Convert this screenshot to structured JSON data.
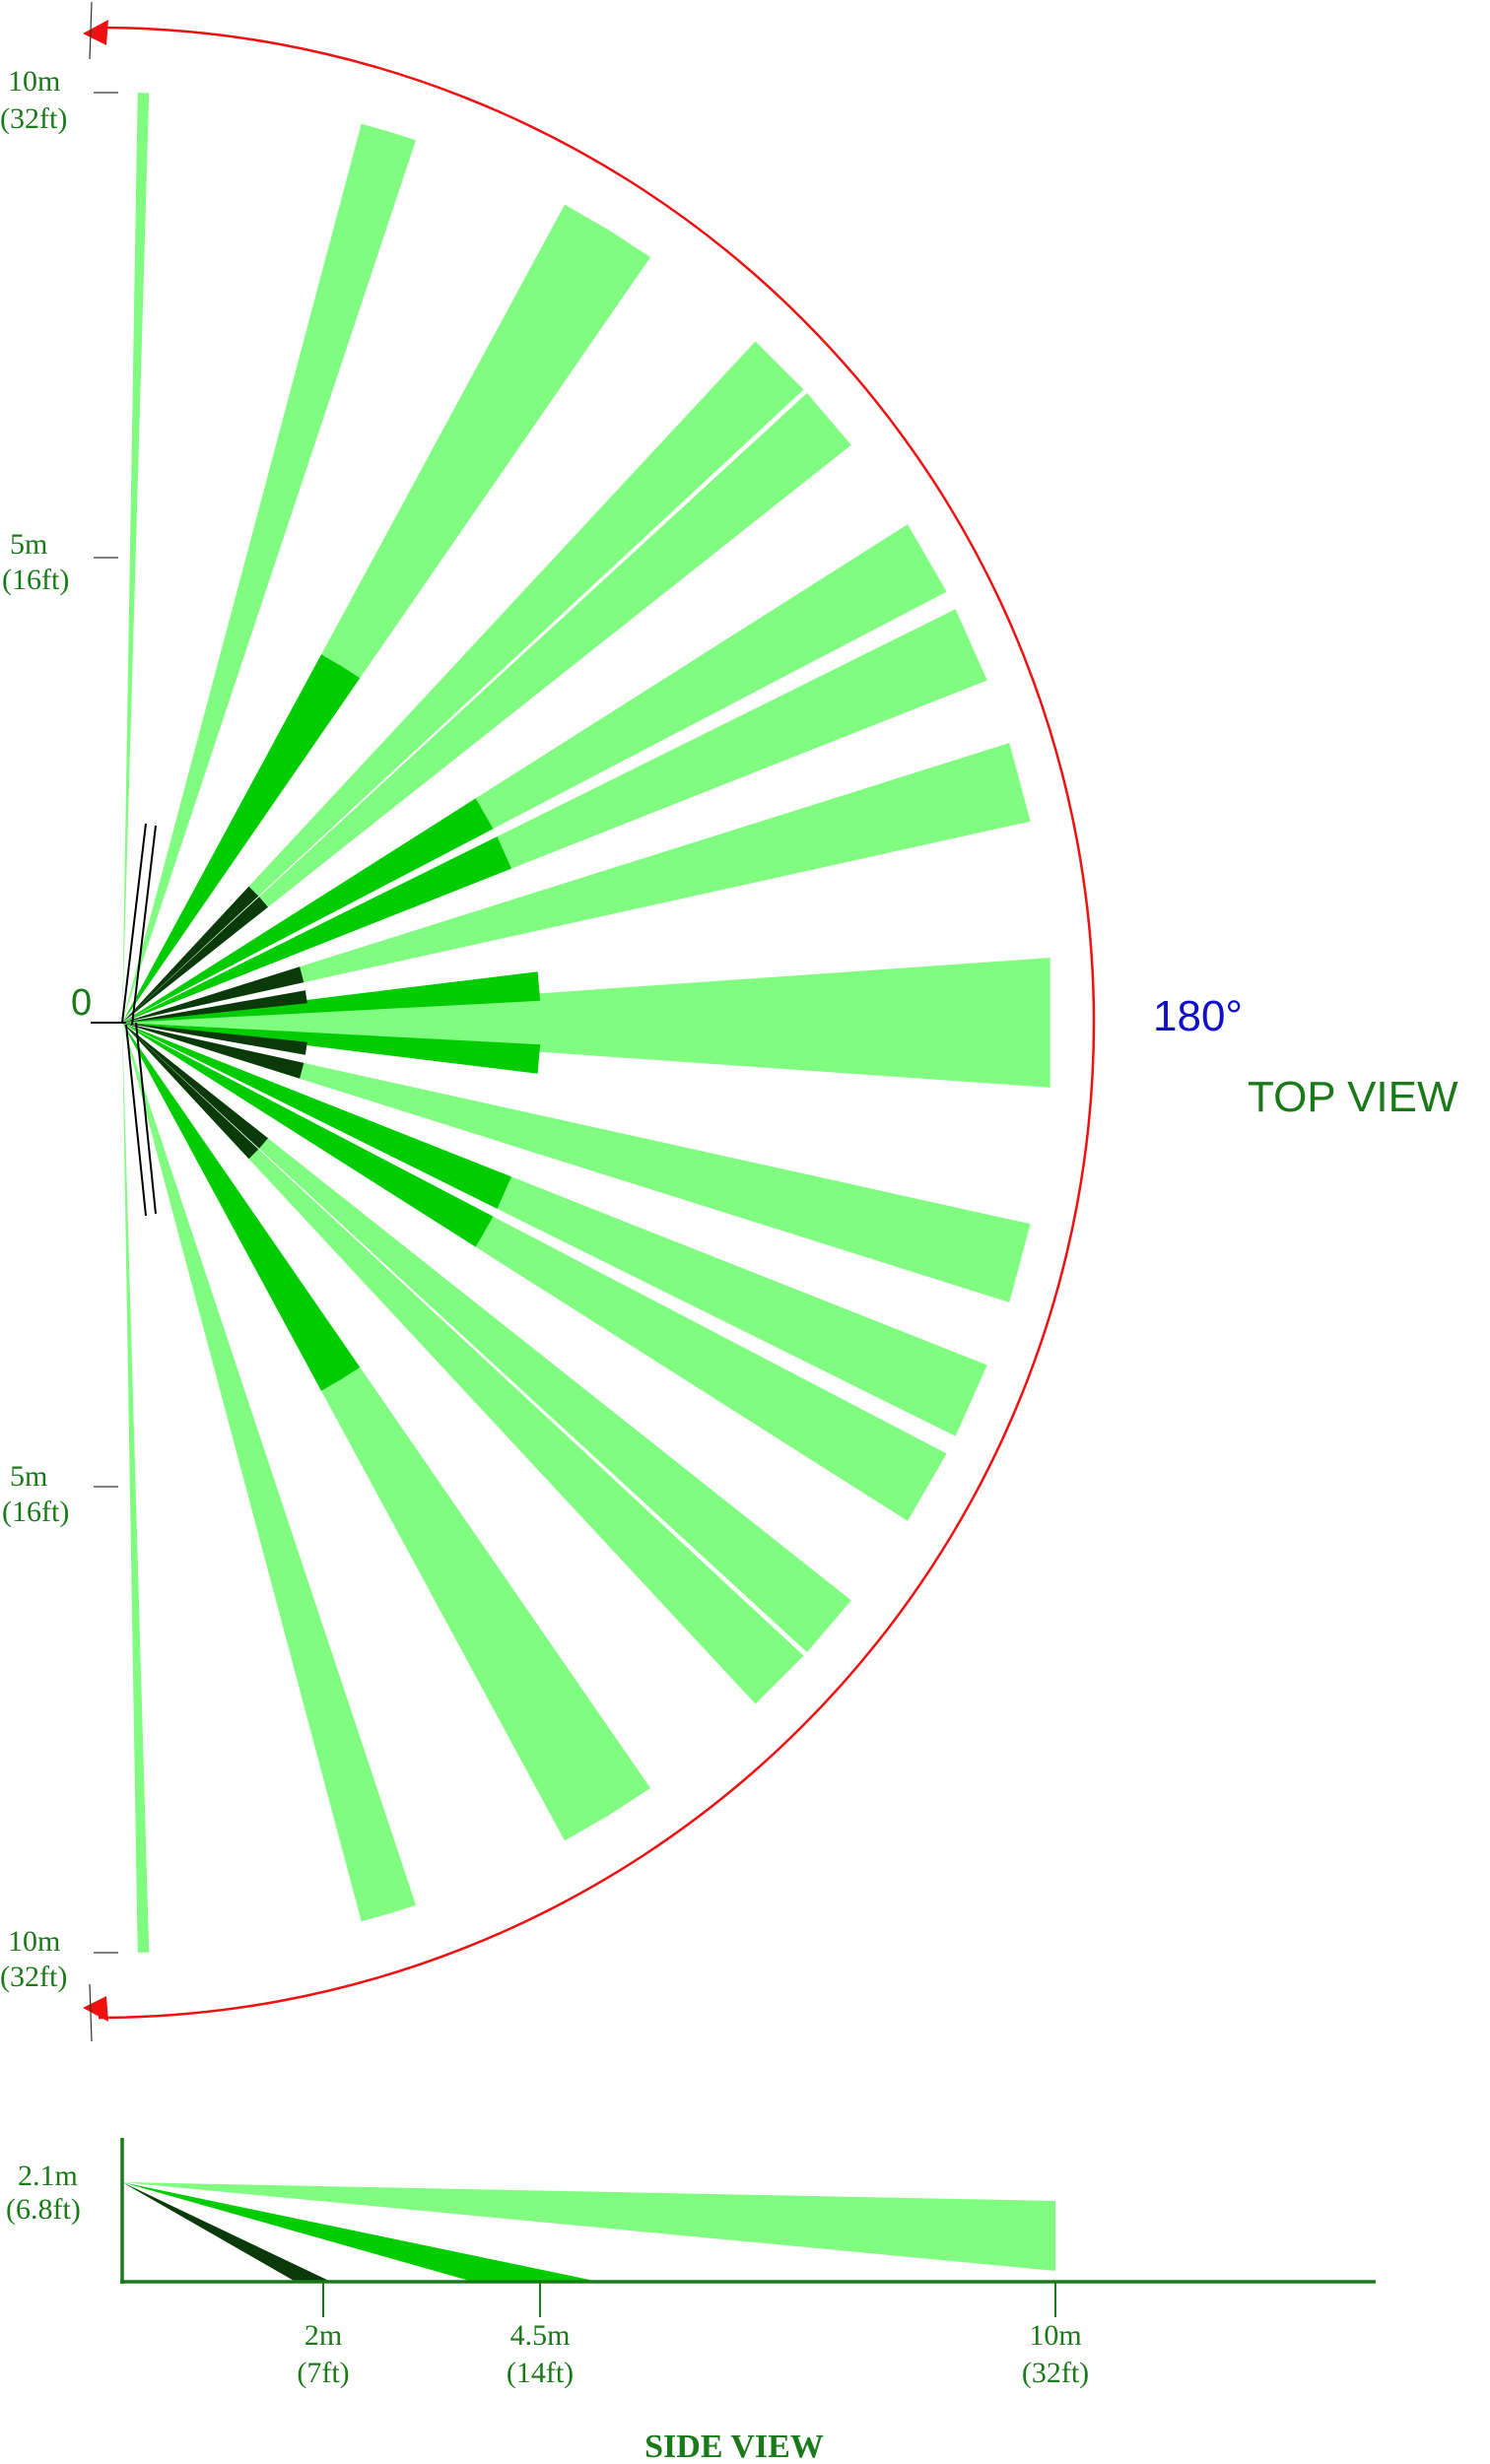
{
  "top_view": {
    "title": "TOP VIEW",
    "angle_label": "180°",
    "origin_label": "0",
    "scale_marks": [
      {
        "m": "10m",
        "ft": "(32ft)",
        "side": "top",
        "dist_m": 10
      },
      {
        "m": "5m",
        "ft": "(16ft)",
        "side": "top",
        "dist_m": 5
      },
      {
        "m": "5m",
        "ft": "(16ft)",
        "side": "bottom",
        "dist_m": 5
      },
      {
        "m": "10m",
        "ft": "(32ft)",
        "side": "bottom",
        "dist_m": 10
      }
    ],
    "zones": {
      "far": [
        {
          "deg": 1.3,
          "width": 0.7,
          "range_m": 10
        },
        {
          "deg": 15.8,
          "width": 1.8,
          "range_m": 10
        },
        {
          "deg": 17.5,
          "width": 1.8,
          "range_m": 10
        },
        {
          "deg": 30.0,
          "width": 3.2,
          "range_m": 10
        },
        {
          "deg": 33.0,
          "width": 3.2,
          "range_m": 10
        },
        {
          "deg": 45.0,
          "width": 4.2,
          "range_m": 10
        },
        {
          "deg": 49.5,
          "width": 4.2,
          "range_m": 10
        },
        {
          "deg": 60.0,
          "width": 4.8,
          "range_m": 10
        },
        {
          "deg": 66.0,
          "width": 4.8,
          "range_m": 10
        },
        {
          "deg": 75.0,
          "width": 5.0,
          "range_m": 10
        },
        {
          "deg": 90.0,
          "width": 8.0,
          "range_m": 10
        },
        {
          "deg": 105.0,
          "width": 5.0,
          "range_m": 10
        },
        {
          "deg": 114.0,
          "width": 4.8,
          "range_m": 10
        },
        {
          "deg": 120.0,
          "width": 4.8,
          "range_m": 10
        },
        {
          "deg": 130.5,
          "width": 4.2,
          "range_m": 10
        },
        {
          "deg": 135.0,
          "width": 4.2,
          "range_m": 10
        },
        {
          "deg": 147.0,
          "width": 3.2,
          "range_m": 10
        },
        {
          "deg": 150.0,
          "width": 3.2,
          "range_m": 10
        },
        {
          "deg": 162.5,
          "width": 1.8,
          "range_m": 10
        },
        {
          "deg": 164.2,
          "width": 1.8,
          "range_m": 10
        },
        {
          "deg": 178.7,
          "width": 0.7,
          "range_m": 10
        }
      ],
      "mid": [
        {
          "deg": 30.0,
          "width": 3.2,
          "range_m": 4.5
        },
        {
          "deg": 33.0,
          "width": 3.2,
          "range_m": 4.5
        },
        {
          "deg": 60.0,
          "width": 4.8,
          "range_m": 4.5
        },
        {
          "deg": 66.0,
          "width": 4.8,
          "range_m": 4.5
        },
        {
          "deg": 85.0,
          "width": 4.0,
          "range_m": 4.5
        },
        {
          "deg": 95.0,
          "width": 4.0,
          "range_m": 4.5
        },
        {
          "deg": 114.0,
          "width": 4.8,
          "range_m": 4.5
        },
        {
          "deg": 120.0,
          "width": 4.8,
          "range_m": 4.5
        },
        {
          "deg": 147.0,
          "width": 3.2,
          "range_m": 4.5
        },
        {
          "deg": 150.0,
          "width": 3.2,
          "range_m": 4.5
        }
      ],
      "near": [
        {
          "deg": 45.0,
          "width": 4.2,
          "range_m": 2
        },
        {
          "deg": 49.5,
          "width": 4.2,
          "range_m": 2
        },
        {
          "deg": 75.0,
          "width": 5.0,
          "range_m": 2
        },
        {
          "deg": 82.0,
          "width": 4.0,
          "range_m": 2
        },
        {
          "deg": 98.0,
          "width": 4.0,
          "range_m": 2
        },
        {
          "deg": 105.0,
          "width": 5.0,
          "range_m": 2
        },
        {
          "deg": 130.5,
          "width": 4.2,
          "range_m": 2
        },
        {
          "deg": 135.0,
          "width": 4.2,
          "range_m": 2
        }
      ]
    }
  },
  "side_view": {
    "title": "SIDE VIEW",
    "height_m": "2.1m",
    "height_ft": "(6.8ft)",
    "ticks": [
      {
        "m": "2m",
        "ft": "(7ft)",
        "dist_m": 2
      },
      {
        "m": "4.5m",
        "ft": "(14ft)",
        "dist_m": 4.5
      },
      {
        "m": "10m",
        "ft": "(32ft)",
        "dist_m": 10
      }
    ]
  },
  "colors": {
    "far_zone": "#80fc80",
    "mid_zone": "#00cc00",
    "near_zone": "#0a3a0a",
    "label_green": "#1a7a1a",
    "arc_red": "#ee1111",
    "angle_blue": "#1010cc"
  }
}
